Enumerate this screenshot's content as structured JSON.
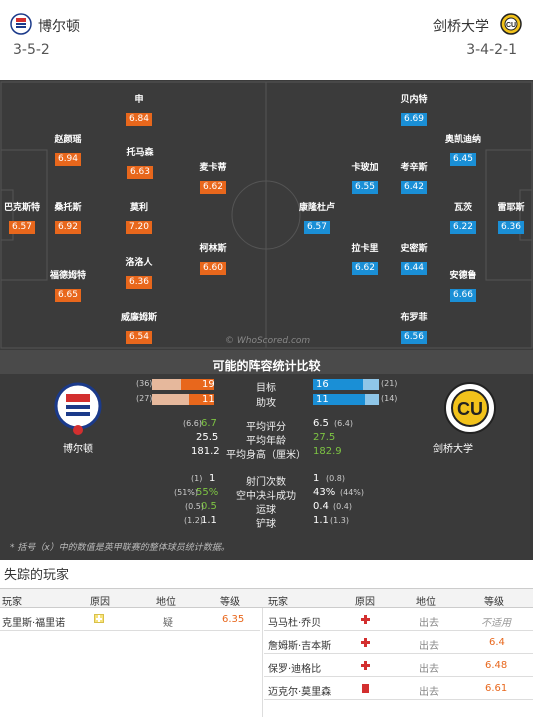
{
  "header": {
    "home_team": "博尔顿",
    "away_team": "剑桥大学",
    "home_formation": "3-5-2",
    "away_formation": "3-4-2-1"
  },
  "pitch": {
    "watermark": "© WhoScored.com",
    "home_players": [
      {
        "name": "申",
        "rating": "6.84"
      },
      {
        "name": "赵颜瑶",
        "rating": "6.94"
      },
      {
        "name": "托马森",
        "rating": "6.63"
      },
      {
        "name": "麦卡蒂",
        "rating": "6.62"
      },
      {
        "name": "巴克斯特",
        "rating": "6.57"
      },
      {
        "name": "桑托斯",
        "rating": "6.92"
      },
      {
        "name": "莫利",
        "rating": "7.20"
      },
      {
        "name": "柯林斯",
        "rating": "6.60"
      },
      {
        "name": "洛洛人",
        "rating": "6.36"
      },
      {
        "name": "福德姆特",
        "rating": "6.65"
      },
      {
        "name": "威廉姆斯",
        "rating": "6.54"
      }
    ],
    "away_players": [
      {
        "name": "贝内特",
        "rating": "6.69"
      },
      {
        "name": "奥凯迪纳",
        "rating": "6.45"
      },
      {
        "name": "卡玻加",
        "rating": "6.55"
      },
      {
        "name": "考辛斯",
        "rating": "6.42"
      },
      {
        "name": "康隆杜卢",
        "rating": "6.57"
      },
      {
        "name": "瓦茨",
        "rating": "6.22"
      },
      {
        "name": "雷耶斯",
        "rating": "6.36"
      },
      {
        "name": "拉卡里",
        "rating": "6.62"
      },
      {
        "name": "史密斯",
        "rating": "6.44"
      },
      {
        "name": "安德鲁",
        "rating": "6.66"
      },
      {
        "name": "布罗菲",
        "rating": "6.56"
      }
    ]
  },
  "stats": {
    "title": "可能的阵容统计比较",
    "home_name": "博尔顿",
    "away_name": "剑桥大学",
    "goals": {
      "label": "目标",
      "home": "19",
      "home_sub": "(36)",
      "away": "16",
      "away_sub": "(21)",
      "home_frac": 0.53,
      "away_frac": 0.76
    },
    "assists": {
      "label": "助攻",
      "home": "11",
      "home_sub": "(27)",
      "away": "11",
      "away_sub": "(14)",
      "home_frac": 0.41,
      "away_frac": 0.79
    },
    "rating": {
      "label": "平均评分",
      "home": "6.7",
      "home_sub": "(6.6)",
      "away": "6.5",
      "away_sub": "(6.4)"
    },
    "age": {
      "label": "平均年龄",
      "home": "25.5",
      "away": "27.5"
    },
    "height": {
      "label": "平均身高（厘米）",
      "home": "181.2",
      "away": "182.9"
    },
    "shots": {
      "label": "射门次数",
      "home": "1",
      "home_sub": "(1)",
      "away": "1",
      "away_sub": "(0.8)"
    },
    "aerial": {
      "label": "空中决斗成功",
      "home": "55%",
      "home_sub": "(51%)",
      "away": "43%",
      "away_sub": "(44%)"
    },
    "dribbles": {
      "label": "运球",
      "home": "0.5",
      "home_sub": "(0.5)",
      "away": "0.4",
      "away_sub": "(0.4)"
    },
    "tackles": {
      "label": "铲球",
      "home": "1.1",
      "home_sub": "(1.2)",
      "away": "1.1",
      "away_sub": "(1.3)"
    },
    "footnote": "* 括号（x）中的数值是英甲联赛的整体球员统计数据。"
  },
  "missing": {
    "title": "失踪的玩家",
    "headers": {
      "player": "玩家",
      "reason": "原因",
      "status": "地位",
      "rating": "等级"
    },
    "home": [
      {
        "player": "克里斯·福里诺",
        "status": "疑",
        "rating": "6.35",
        "reason_icon": "doubt-icon"
      }
    ],
    "away": [
      {
        "player": "马马杜·乔贝",
        "status": "出去",
        "rating": "不适用",
        "reason_icon": "injury-icon"
      },
      {
        "player": "詹姆斯·吉本斯",
        "status": "出去",
        "rating": "6.4",
        "reason_icon": "injury-icon"
      },
      {
        "player": "保罗·迪格比",
        "status": "出去",
        "rating": "6.48",
        "reason_icon": "injury-icon"
      },
      {
        "player": "迈克尔·莫里森",
        "status": "出去",
        "rating": "6.61",
        "reason_icon": "red-card-icon"
      }
    ]
  },
  "colors": {
    "home_accent": "#e8671c",
    "away_accent": "#1a8fd6",
    "pitch": "#3b3b3b"
  }
}
